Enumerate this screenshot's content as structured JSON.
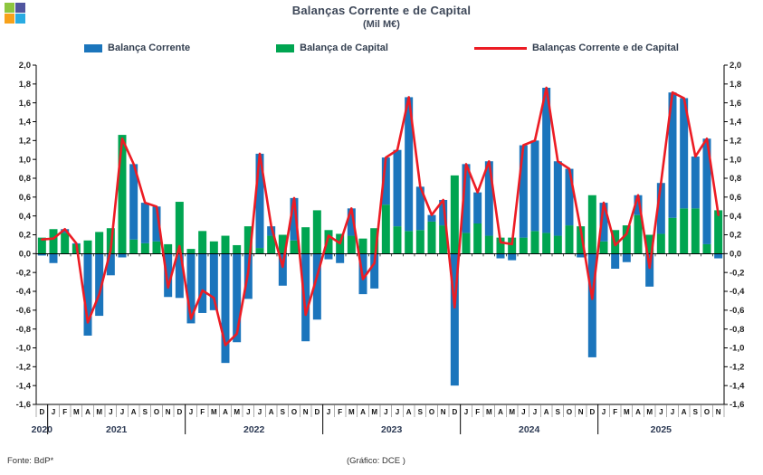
{
  "title": {
    "text": "Balanças Corrente e de Capital",
    "subtitle": "(Mil M€)"
  },
  "logo": {
    "name": "four-squares-logo",
    "colors": [
      "#8dc63f",
      "#50559f",
      "#f7a11a",
      "#29abe2"
    ]
  },
  "legend": {
    "items": [
      {
        "label": "Balança Corrente",
        "swatch": "rect",
        "color": "#1b75bc"
      },
      {
        "label": "Balança de Capital",
        "swatch": "rect",
        "color": "#00a551"
      },
      {
        "label": "Balanças Corrente e de Capital",
        "swatch": "line",
        "color": "#ec1c24"
      }
    ]
  },
  "footer": {
    "source": "Fonte: BdP*",
    "credit": "(Gráfico: DCE )"
  },
  "chart_data": {
    "type": "bar",
    "title": "Balanças Corrente e de Capital",
    "subtitle": "(Mil M€)",
    "ylabel": "",
    "xlabel": "",
    "ylim": [
      -1.6,
      2.0
    ],
    "ytick_step": 0.2,
    "grid": false,
    "legend_position": "top",
    "y_tick_labels": [
      "2,0",
      "1,8",
      "1,6",
      "1,4",
      "1,2",
      "1,0",
      "0,8",
      "0,6",
      "0,4",
      "0,2",
      "0,0",
      "-0,2",
      "-0,4",
      "-0,6",
      "-0,8",
      "-1,0",
      "-1,2",
      "-1,4",
      "-1,6"
    ],
    "x_labels": [
      "D",
      "J",
      "F",
      "M",
      "A",
      "M",
      "J",
      "J",
      "A",
      "S",
      "O",
      "N",
      "D",
      "J",
      "F",
      "M",
      "A",
      "M",
      "J",
      "J",
      "A",
      "S",
      "O",
      "N",
      "D",
      "J",
      "F",
      "M",
      "A",
      "M",
      "J",
      "J",
      "A",
      "S",
      "O",
      "N",
      "D",
      "J",
      "F",
      "M",
      "A",
      "M",
      "J",
      "J",
      "A",
      "S",
      "O",
      "N",
      "D",
      "J",
      "F",
      "M",
      "A",
      "M",
      "J",
      "J",
      "A",
      "S",
      "O",
      "N"
    ],
    "years": [
      {
        "label": "2020",
        "span": 1
      },
      {
        "label": "2021",
        "span": 12
      },
      {
        "label": "2022",
        "span": 12
      },
      {
        "label": "2023",
        "span": 12
      },
      {
        "label": "2024",
        "span": 12
      },
      {
        "label": "2025",
        "span": 11
      }
    ],
    "series": [
      {
        "name": "Balança Corrente",
        "type": "bar",
        "stack_order": "top",
        "color": "#1b75bc",
        "values": [
          -0.02,
          -0.1,
          0.04,
          0.01,
          -0.87,
          -0.66,
          -0.23,
          -0.04,
          0.8,
          0.43,
          0.37,
          -0.46,
          -0.47,
          -0.74,
          -0.63,
          -0.6,
          -1.16,
          -0.94,
          -0.48,
          1.0,
          0.1,
          -0.34,
          0.45,
          -0.93,
          -0.7,
          -0.06,
          -0.1,
          0.29,
          -0.43,
          -0.37,
          0.5,
          0.81,
          1.42,
          0.46,
          0.07,
          0.27,
          -1.4,
          0.73,
          0.33,
          0.79,
          -0.05,
          -0.07,
          0.98,
          0.96,
          1.54,
          0.79,
          0.6,
          -0.04,
          -1.1,
          0.41,
          -0.16,
          -0.09,
          0.21,
          -0.35,
          0.54,
          1.33,
          1.17,
          0.55,
          1.12,
          -0.05
        ]
      },
      {
        "name": "Balança de Capital",
        "type": "bar",
        "stack_order": "bottom",
        "color": "#00a551",
        "values": [
          0.17,
          0.26,
          0.22,
          0.1,
          0.14,
          0.23,
          0.27,
          1.26,
          0.15,
          0.11,
          0.13,
          0.1,
          0.55,
          0.05,
          0.24,
          0.13,
          0.19,
          0.09,
          0.29,
          0.06,
          0.19,
          0.2,
          0.14,
          0.28,
          0.46,
          0.25,
          0.21,
          0.19,
          0.16,
          0.27,
          0.52,
          0.29,
          0.24,
          0.25,
          0.34,
          0.3,
          0.83,
          0.22,
          0.32,
          0.19,
          0.17,
          0.17,
          0.17,
          0.24,
          0.22,
          0.19,
          0.3,
          0.29,
          0.62,
          0.13,
          0.25,
          0.3,
          0.41,
          0.2,
          0.21,
          0.38,
          0.48,
          0.48,
          0.1,
          0.46
        ]
      },
      {
        "name": "Balanças Corrente e de Capital",
        "type": "line",
        "color": "#ec1c24",
        "values": [
          0.15,
          0.16,
          0.26,
          0.11,
          -0.73,
          -0.43,
          0.04,
          1.22,
          0.95,
          0.54,
          0.5,
          -0.36,
          0.08,
          -0.69,
          -0.39,
          -0.47,
          -0.97,
          -0.85,
          -0.19,
          1.06,
          0.29,
          -0.14,
          0.59,
          -0.65,
          -0.24,
          0.19,
          0.11,
          0.48,
          -0.27,
          -0.1,
          1.02,
          1.1,
          1.66,
          0.71,
          0.41,
          0.57,
          -0.57,
          0.95,
          0.65,
          0.98,
          0.12,
          0.1,
          1.15,
          1.2,
          1.76,
          0.98,
          0.9,
          0.25,
          -0.48,
          0.54,
          0.09,
          0.21,
          0.62,
          -0.15,
          0.75,
          1.71,
          1.65,
          1.03,
          1.22,
          0.41
        ]
      }
    ]
  }
}
